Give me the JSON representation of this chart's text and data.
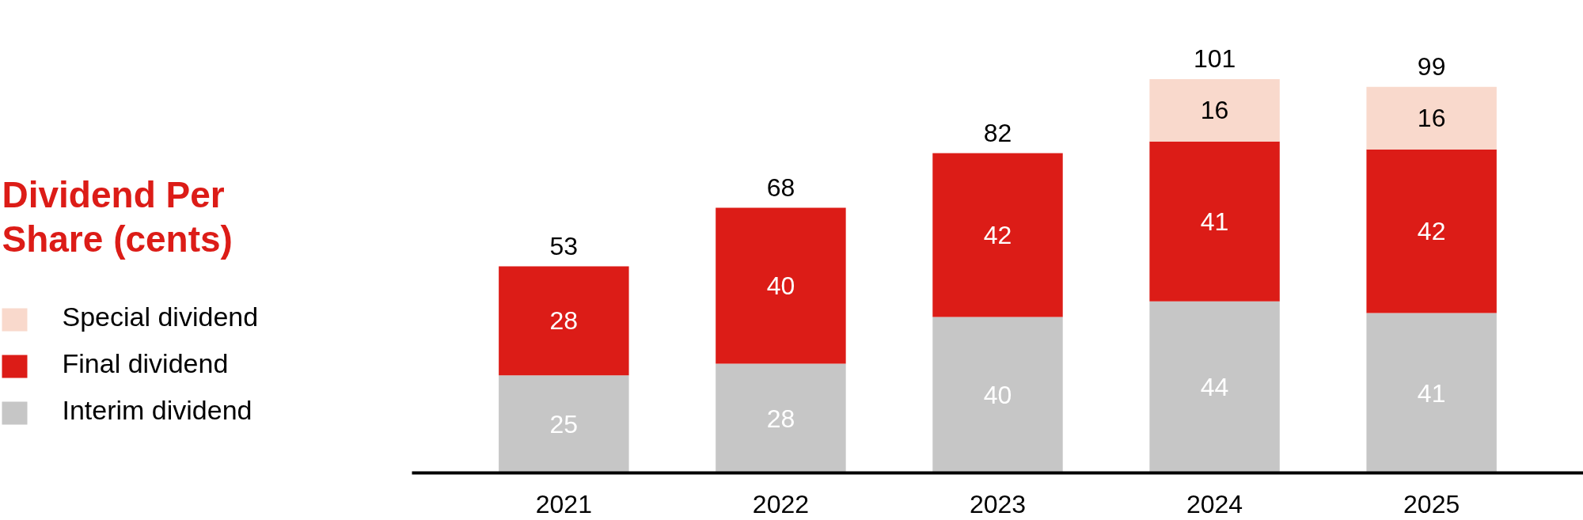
{
  "chart_data": {
    "type": "bar",
    "title": "Dividend Per Share (cents)",
    "stacked": true,
    "data_labels": true,
    "legend": "left",
    "categories": [
      "2021",
      "2022",
      "2023",
      "2024",
      "2025"
    ],
    "series": [
      {
        "name": "Interim dividend",
        "color": "#c6c6c6",
        "values": [
          25,
          28,
          40,
          44,
          41
        ]
      },
      {
        "name": "Final dividend",
        "color": "#dc1c17",
        "values": [
          28,
          40,
          42,
          41,
          42
        ]
      },
      {
        "name": "Special dividend",
        "color": "#f9d9cc",
        "values": [
          null,
          null,
          null,
          16,
          16
        ]
      }
    ],
    "totals": [
      "53",
      "68",
      "82",
      "101",
      "99"
    ]
  }
}
